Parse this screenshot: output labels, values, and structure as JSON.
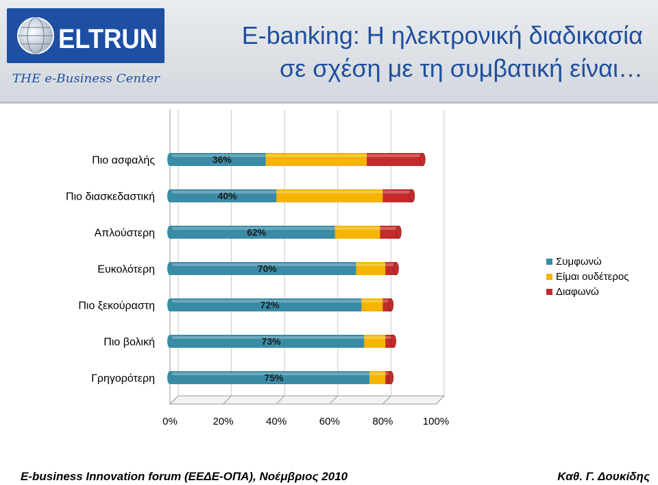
{
  "header": {
    "logo_text": "ELTRUN",
    "logo_tagline": "THE e-Business Center",
    "title_line1": "E-banking: Η ηλεκτρονική διαδικασία",
    "title_line2": "σε σχέση με τη συμβατική είναι…"
  },
  "chart_data": {
    "type": "bar",
    "orientation": "horizontal",
    "stacked": true,
    "categories": [
      "Πιο ασφαλής",
      "Πιο διασκεδαστική",
      "Απλούστερη",
      "Ευκολότερη",
      "Πιο ξεκούραστη",
      "Πιο βολική",
      "Γρηγορότερη"
    ],
    "series": [
      {
        "name": "Συμφωνώ",
        "color": "#3a8ca6",
        "values": [
          36,
          40,
          62,
          70,
          72,
          73,
          75
        ]
      },
      {
        "name": "Είμαι ουδέτερος",
        "color": "#f5b400",
        "values": [
          38,
          40,
          17,
          11,
          8,
          8,
          6
        ]
      },
      {
        "name": "Διαφωνώ",
        "color": "#c42b2b",
        "values": [
          21,
          11,
          7,
          4,
          3,
          3,
          2
        ]
      }
    ],
    "data_labels": [
      "36%",
      "40%",
      "62%",
      "70%",
      "72%",
      "73%",
      "75%"
    ],
    "xlim": [
      0,
      100
    ],
    "x_ticks": [
      "0%",
      "20%",
      "40%",
      "60%",
      "80%",
      "100%"
    ],
    "legend_position": "right",
    "grid": true
  },
  "footer": {
    "left": "E-business Innovation forum (ΕΕΔΕ-ΟΠΑ), Νοέμβριος 2010",
    "right": "Καθ. Γ. Δουκίδης"
  }
}
